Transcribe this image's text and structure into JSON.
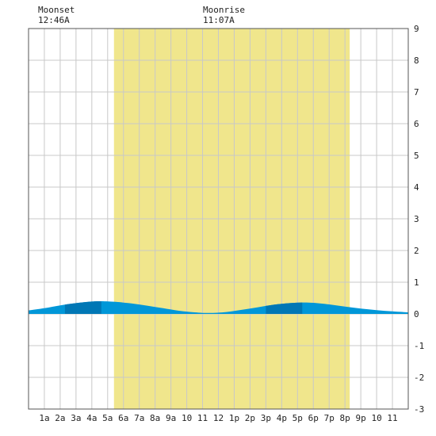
{
  "moon": {
    "moonset_label": "Moonset",
    "moonset_time": "12:46A",
    "moonrise_label": "Moonrise",
    "moonrise_time": "11:07A"
  },
  "colors": {
    "daylight": "#f0e68c",
    "grid": "#c8c8c8",
    "axis": "#555555",
    "tide_light": "#0097d8",
    "tide_dark": "#0077b5",
    "background": "#ffffff"
  },
  "chart_data": {
    "type": "area",
    "x_unit": "hour",
    "xlim": [
      0,
      24
    ],
    "ylim": [
      -3,
      9
    ],
    "y_ticks": [
      -3,
      -2,
      -1,
      0,
      1,
      2,
      3,
      4,
      5,
      6,
      7,
      8,
      9
    ],
    "x_ticks": [
      1,
      2,
      3,
      4,
      5,
      6,
      7,
      8,
      9,
      10,
      11,
      12,
      13,
      14,
      15,
      16,
      17,
      18,
      19,
      20,
      21,
      22,
      23
    ],
    "x_tick_labels": [
      "1a",
      "2a",
      "3a",
      "4a",
      "5a",
      "6a",
      "7a",
      "8a",
      "9a",
      "10",
      "11",
      "12",
      "1p",
      "2p",
      "3p",
      "4p",
      "5p",
      "6p",
      "7p",
      "8p",
      "9p",
      "10",
      "11"
    ],
    "daylight": [
      5.4,
      20.3
    ],
    "tide": {
      "x": [
        0,
        1,
        2,
        3,
        4,
        4.6,
        5.5,
        6.5,
        7.5,
        8.5,
        9.5,
        10.5,
        11.4,
        12.5,
        13.5,
        14.5,
        15.5,
        16.5,
        17.3,
        18,
        19,
        20,
        21,
        22,
        23,
        24
      ],
      "y": [
        0.11,
        0.18,
        0.27,
        0.34,
        0.39,
        0.4,
        0.38,
        0.33,
        0.26,
        0.18,
        0.1,
        0.05,
        0.03,
        0.06,
        0.13,
        0.21,
        0.29,
        0.34,
        0.36,
        0.35,
        0.3,
        0.23,
        0.17,
        0.12,
        0.08,
        0.05
      ]
    },
    "tide_dark_bands": [
      [
        4.6,
        0.4
      ],
      [
        17.3,
        0.36
      ]
    ],
    "grid": true
  }
}
